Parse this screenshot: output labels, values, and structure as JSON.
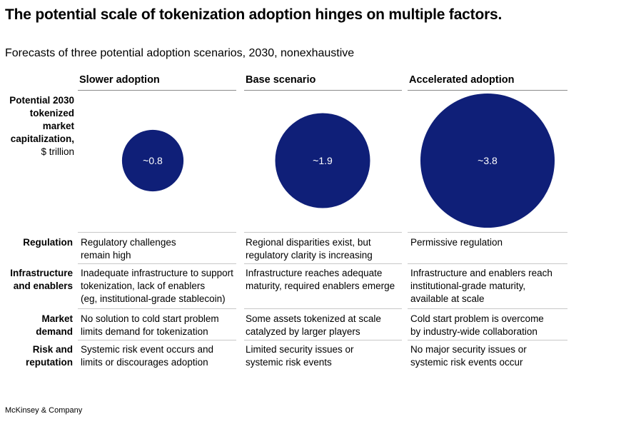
{
  "title": "The potential scale of tokenization adoption hinges on multiple factors.",
  "subtitle": "Forecasts of three potential adoption scenarios, 2030, nonexhaustive",
  "metric_label": {
    "strong": "Potential 2030 tokenized market capitalization,",
    "unit": "$ trillion"
  },
  "chart_data": {
    "type": "bubble",
    "title": "The potential scale of tokenization adoption hinges on multiple factors.",
    "subtitle": "Forecasts of three potential adoption scenarios, 2030, nonexhaustive",
    "categories": [
      "Slower adoption",
      "Base scenario",
      "Accelerated adoption"
    ],
    "values": [
      0.8,
      1.9,
      3.8
    ],
    "value_labels": [
      "~0.8",
      "~1.9",
      "~3.8"
    ],
    "ylabel": "Potential 2030 tokenized market capitalization, $ trillion",
    "bubble_color": "#0f1f78",
    "label_color": "#ffffff"
  },
  "factors": [
    {
      "label": "Regulation",
      "cells": [
        "Regulatory challenges\nremain high",
        "Regional disparities exist, but\nregulatory clarity is increasing",
        "Permissive regulation"
      ]
    },
    {
      "label": "Infrastructure\nand enablers",
      "cells": [
        "Inadequate infrastructure to support\ntokenization, lack of enablers\n(eg, institutional-grade stablecoin)",
        "Infrastructure reaches adequate\nmaturity, required enablers emerge",
        "Infrastructure and enablers reach\ninstitutional-grade maturity,\navailable at scale"
      ]
    },
    {
      "label": "Market\ndemand",
      "cells": [
        "No solution to cold start problem\nlimits demand for tokenization",
        "Some assets tokenized at scale\ncatalyzed by larger players",
        "Cold start problem is overcome\nby industry-wide collaboration"
      ]
    },
    {
      "label": "Risk and\nreputation",
      "cells": [
        "Systemic risk event occurs and\nlimits or discourages adoption",
        "Limited security issues or\nsystemic risk events",
        "No major security issues or\nsystemic risk events occur"
      ]
    }
  ],
  "footer": "McKinsey & Company"
}
